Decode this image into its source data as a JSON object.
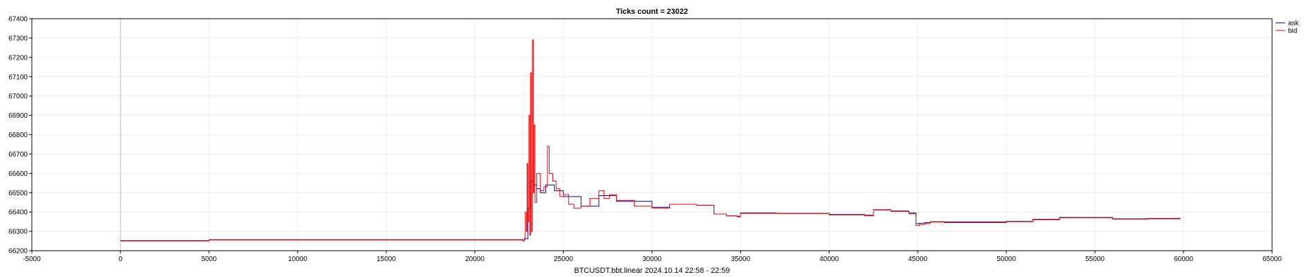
{
  "chart_data": {
    "type": "line",
    "title": "Ticks count = 23022",
    "xlabel": "BTCUSDT.bbt.linear 2024.10.14 22:58 - 22:59",
    "ylabel": "",
    "xlim": [
      -5000,
      65000
    ],
    "ylim": [
      66200,
      67400
    ],
    "x_ticks": [
      -5000,
      0,
      5000,
      10000,
      15000,
      20000,
      25000,
      30000,
      35000,
      40000,
      45000,
      50000,
      55000,
      60000,
      65000
    ],
    "y_ticks": [
      66200,
      66300,
      66400,
      66500,
      66600,
      66700,
      66800,
      66900,
      67000,
      67100,
      67200,
      67300,
      67400
    ],
    "grid": true,
    "legend_position": "top-right",
    "colors": {
      "ask": "#00008b",
      "bid": "#ff0000",
      "axis": "#000000",
      "grid": "#ececec",
      "zero_line": "#b4b4b4"
    },
    "series": [
      {
        "name": "ask",
        "x": [
          0,
          4999,
          5000,
          22000,
          22500,
          22800,
          23000,
          23150,
          23300,
          23500,
          23700,
          24000,
          24500,
          25000,
          26000,
          27000,
          28000,
          30000,
          31000,
          32500,
          33500,
          34200,
          34800,
          35000,
          37000,
          40000,
          42000,
          42500,
          43500,
          44500,
          44900,
          45100,
          45400,
          45700,
          46500,
          50000,
          51500,
          53000,
          56000,
          58000,
          59800
        ],
        "y": [
          66252,
          66252,
          66257,
          66257,
          66257,
          66262,
          66420,
          66560,
          66540,
          66520,
          66500,
          66540,
          66510,
          66480,
          66430,
          66485,
          66455,
          66425,
          66440,
          66435,
          66390,
          66380,
          66378,
          66395,
          66393,
          66387,
          66383,
          66412,
          66405,
          66395,
          66340,
          66342,
          66345,
          66350,
          66348,
          66352,
          66362,
          66372,
          66365,
          66367,
          66370
        ]
      },
      {
        "name": "bid",
        "x": [
          0,
          4999,
          5000,
          22000,
          22500,
          22700,
          22800,
          22850,
          22900,
          22950,
          23000,
          23050,
          23100,
          23150,
          23200,
          23250,
          23300,
          23350,
          23400,
          23500,
          23700,
          23900,
          24100,
          24200,
          24400,
          24600,
          24800,
          25000,
          25300,
          25600,
          26000,
          26500,
          27000,
          27300,
          27600,
          28000,
          29000,
          30000,
          31000,
          32500,
          33500,
          34200,
          34800,
          35000,
          37000,
          40000,
          42000,
          42500,
          43500,
          44500,
          44900,
          45100,
          45400,
          45700,
          46500,
          50000,
          51500,
          53000,
          56000,
          58000,
          59800
        ],
        "y": [
          66250,
          66250,
          66255,
          66255,
          66255,
          66250,
          66260,
          66400,
          66300,
          66650,
          66350,
          66900,
          66280,
          67120,
          66300,
          67290,
          66500,
          66850,
          66450,
          66600,
          66510,
          66530,
          66740,
          66600,
          66560,
          66520,
          66480,
          66490,
          66440,
          66420,
          66430,
          66470,
          66510,
          66470,
          66490,
          66460,
          66430,
          66420,
          66440,
          66435,
          66390,
          66380,
          66375,
          66393,
          66392,
          66385,
          66380,
          66410,
          66403,
          66390,
          66330,
          66335,
          66340,
          66348,
          66345,
          66350,
          66360,
          66370,
          66363,
          66365,
          66368
        ]
      }
    ]
  }
}
